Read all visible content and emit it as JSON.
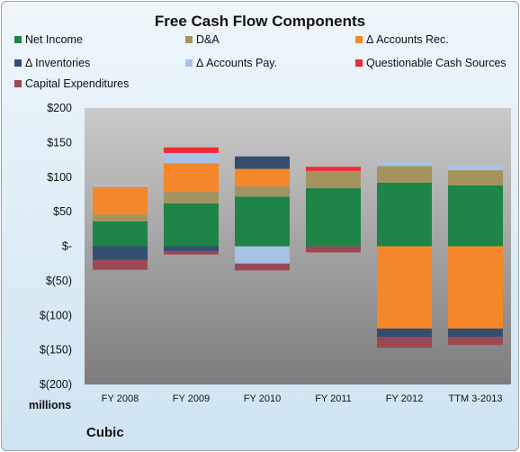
{
  "company": "Cubic",
  "units_label": "millions",
  "chart_data": {
    "type": "bar",
    "stacked": true,
    "title": "Free Cash Flow Components",
    "xlabel": "",
    "ylabel": "",
    "ylim": [
      -200,
      200
    ],
    "yticks": [
      200,
      150,
      100,
      50,
      0,
      -50,
      -100,
      -150,
      -200
    ],
    "ytick_labels": [
      "$200",
      "$150",
      "$100",
      "$50",
      "$-",
      "$(50)",
      "$(100)",
      "$(150)",
      "$(200)"
    ],
    "grid": false,
    "legend_position": "top",
    "categories": [
      "FY 2008",
      "FY 2009",
      "FY 2010",
      "FY 2011",
      "FY 2012",
      "TTM 3-2013"
    ],
    "series": [
      {
        "name": "Net Income",
        "color": "#1e8448",
        "values": [
          36,
          62,
          72,
          84,
          92,
          88
        ]
      },
      {
        "name": "D&A",
        "color": "#a5935f",
        "values": [
          10,
          17,
          15,
          25,
          24,
          22
        ]
      },
      {
        "name": "Δ Accounts Rec.",
        "color": "#f5872b",
        "values": [
          40,
          41,
          25,
          0,
          -119,
          -119
        ]
      },
      {
        "name": "Δ Inventories",
        "color": "#344e6f",
        "values": [
          -20,
          -7,
          18,
          0,
          -12,
          -12
        ]
      },
      {
        "name": "Δ Accounts Pay.",
        "color": "#a7c2e2",
        "values": [
          3,
          15,
          0,
          0,
          7,
          8
        ]
      },
      {
        "name": "Questionable Cash Sources",
        "color": "#ef2a33",
        "values": [
          0,
          8,
          0,
          6,
          0,
          0
        ]
      },
      {
        "name": "Capital Expenditures",
        "color": "#9b4a55",
        "values": [
          -14,
          -5,
          -10,
          -9,
          -16,
          -12
        ]
      }
    ],
    "negative_overrides": {
      "Δ Accounts Pay.": [
        0,
        0,
        -25,
        0,
        0,
        0
      ]
    }
  }
}
